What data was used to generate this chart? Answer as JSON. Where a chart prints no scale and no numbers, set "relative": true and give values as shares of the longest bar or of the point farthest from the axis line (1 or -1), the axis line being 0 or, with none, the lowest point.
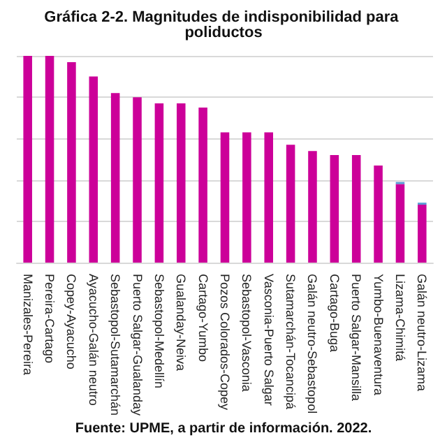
{
  "chart_data": {
    "type": "bar",
    "title": "Gráfica 2-2. Magnitudes de indisponibilidad para poliductos",
    "relative": true,
    "stacked": true,
    "grid": "y",
    "annotations": [
      "Fuente: UPME, a partir de información. 2022."
    ],
    "categories": [
      "Manizales-Pereira",
      "Pereira-Cartago",
      "Copey-Ayacucho",
      "Ayacucho-Galán neutro",
      "Sebastopol-Sutamarchán",
      "Puerto Salgar-Gualanday",
      "Sebastopol-Medellín",
      "Gualanday-Neiva",
      "Cartago-Yumbo",
      "Pozos Colorados-Copey",
      "Sebastopol-Vasconia",
      "Vasconia-Puerto Salgar",
      "Sutamarchán-Tocancipá",
      "Galán neutro-Sebastopol",
      "Cartago-Buga",
      "Puerto Salgar-Mansilla",
      "Yumbo-Buenaventura",
      "Lizama-Chimitá",
      "Galán neutro-Lizama"
    ],
    "series": [
      {
        "color": "#cc0099",
        "values": [
          1,
          1,
          0.97,
          0.9,
          0.82,
          0.8,
          0.77,
          0.77,
          0.75,
          0.63,
          0.63,
          0.63,
          0.57,
          0.54,
          0.52,
          0.52,
          0.47,
          0.38,
          0.28
        ]
      },
      {
        "color": "#5b9bd5",
        "values": [
          null,
          null,
          null,
          null,
          null,
          null,
          null,
          null,
          null,
          null,
          null,
          null,
          null,
          null,
          null,
          null,
          null,
          0.01,
          0.01
        ]
      }
    ]
  }
}
